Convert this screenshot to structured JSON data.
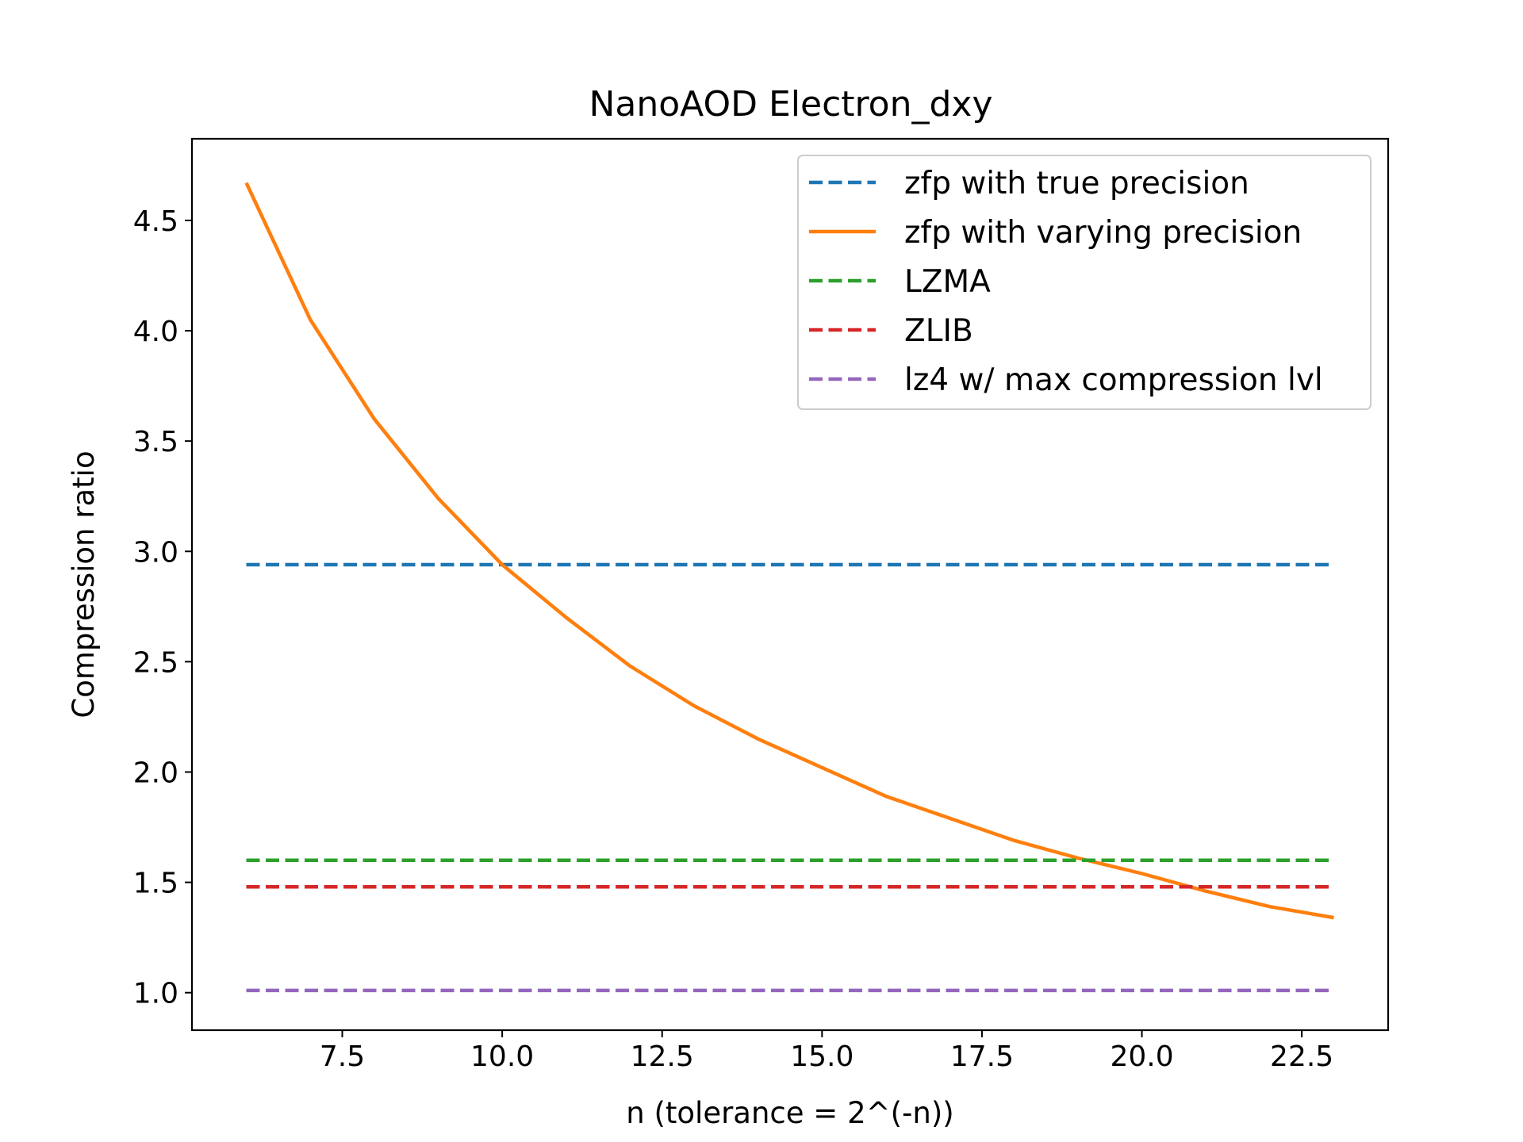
{
  "chart_data": {
    "type": "line",
    "title": "NanoAOD Electron_dxy",
    "xlabel": "n (tolerance = 2^(-n))",
    "ylabel": "Compression ratio",
    "xlim": [
      5.15,
      23.85
    ],
    "ylim": [
      0.83,
      4.87
    ],
    "xticks": [
      7.5,
      10.0,
      12.5,
      15.0,
      17.5,
      20.0,
      22.5
    ],
    "xtick_labels": [
      "7.5",
      "10.0",
      "12.5",
      "15.0",
      "17.5",
      "20.0",
      "22.5"
    ],
    "yticks": [
      1.0,
      1.5,
      2.0,
      2.5,
      3.0,
      3.5,
      4.0,
      4.5
    ],
    "ytick_labels": [
      "1.0",
      "1.5",
      "2.0",
      "2.5",
      "3.0",
      "3.5",
      "4.0",
      "4.5"
    ],
    "grid": false,
    "legend_position": "top-right",
    "x": [
      6,
      7,
      8,
      9,
      10,
      11,
      12,
      13,
      14,
      15,
      16,
      17,
      18,
      19,
      20,
      21,
      22,
      23
    ],
    "series": [
      {
        "name": "zfp with true precision",
        "style": "dashed",
        "color": "#1f77b4",
        "values": [
          2.94,
          2.94,
          2.94,
          2.94,
          2.94,
          2.94,
          2.94,
          2.94,
          2.94,
          2.94,
          2.94,
          2.94,
          2.94,
          2.94,
          2.94,
          2.94,
          2.94,
          2.94
        ]
      },
      {
        "name": "zfp with varying precision",
        "style": "solid",
        "color": "#ff7f0e",
        "values": [
          4.67,
          4.05,
          3.6,
          3.24,
          2.94,
          2.7,
          2.48,
          2.3,
          2.15,
          2.02,
          1.89,
          1.79,
          1.69,
          1.61,
          1.54,
          1.46,
          1.39,
          1.34
        ]
      },
      {
        "name": "LZMA",
        "style": "dashed",
        "color": "#2ca02c",
        "values": [
          1.6,
          1.6,
          1.6,
          1.6,
          1.6,
          1.6,
          1.6,
          1.6,
          1.6,
          1.6,
          1.6,
          1.6,
          1.6,
          1.6,
          1.6,
          1.6,
          1.6,
          1.6
        ]
      },
      {
        "name": "ZLIB",
        "style": "dashed",
        "color": "#d62728",
        "values": [
          1.48,
          1.48,
          1.48,
          1.48,
          1.48,
          1.48,
          1.48,
          1.48,
          1.48,
          1.48,
          1.48,
          1.48,
          1.48,
          1.48,
          1.48,
          1.48,
          1.48,
          1.48
        ]
      },
      {
        "name": "lz4 w/ max compression lvl",
        "style": "dashed",
        "color": "#9467bd",
        "values": [
          1.01,
          1.01,
          1.01,
          1.01,
          1.01,
          1.01,
          1.01,
          1.01,
          1.01,
          1.01,
          1.01,
          1.01,
          1.01,
          1.01,
          1.01,
          1.01,
          1.01,
          1.01
        ]
      }
    ]
  }
}
